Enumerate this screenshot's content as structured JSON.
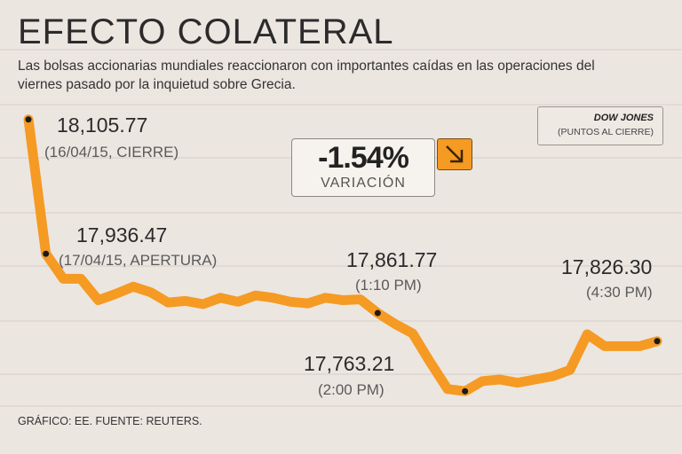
{
  "header": {
    "title": "EFECTO COLATERAL",
    "subtitle": "Las bolsas accionarias mundiales reaccionaron con importantes caídas en las operaciones del viernes pasado por la inquietud sobre Grecia."
  },
  "legend": {
    "series_name": "DOW JONES",
    "unit": "(PUNTOS AL CIERRE)"
  },
  "change": {
    "value": "-1.54%",
    "label": "VARIACIÓN",
    "direction_icon": "arrow-down-right-icon"
  },
  "annotations": [
    {
      "value": "18,105.77",
      "label": "(16/04/15, CIERRE)"
    },
    {
      "value": "17,936.47",
      "label": "(17/04/15, APERTURA)"
    },
    {
      "value": "17,861.77",
      "label": "(1:10 PM)"
    },
    {
      "value": "17,763.21",
      "label": "(2:00 PM)"
    },
    {
      "value": "17,826.30",
      "label": "(4:30 PM)"
    }
  ],
  "footer": {
    "source": "GRÁFICO: EE. FUENTE: REUTERS."
  },
  "colors": {
    "line": "#f59a23",
    "background": "#ece6e1"
  },
  "chart_data": {
    "type": "line",
    "title": "EFECTO COLATERAL",
    "series": [
      {
        "name": "DOW JONES",
        "values": [
          18105.77,
          17936.47,
          17905,
          17905,
          17878,
          17886,
          17895,
          17888,
          17875,
          17877,
          17873,
          17881,
          17876,
          17884,
          17881,
          17876,
          17874,
          17881,
          17878,
          17879,
          17861.77,
          17848,
          17836,
          17800,
          17766,
          17763.21,
          17776,
          17778,
          17774,
          17778,
          17782,
          17790,
          17835,
          17820,
          17820,
          17820,
          17826.3
        ]
      }
    ],
    "highlighted_points": [
      {
        "index": 0,
        "value": 18105.77
      },
      {
        "index": 1,
        "value": 17936.47
      },
      {
        "index": 20,
        "value": 17861.77
      },
      {
        "index": 25,
        "value": 17763.21
      },
      {
        "index": 36,
        "value": 17826.3
      }
    ],
    "ylim": [
      17740,
      18120
    ],
    "grid": true
  }
}
